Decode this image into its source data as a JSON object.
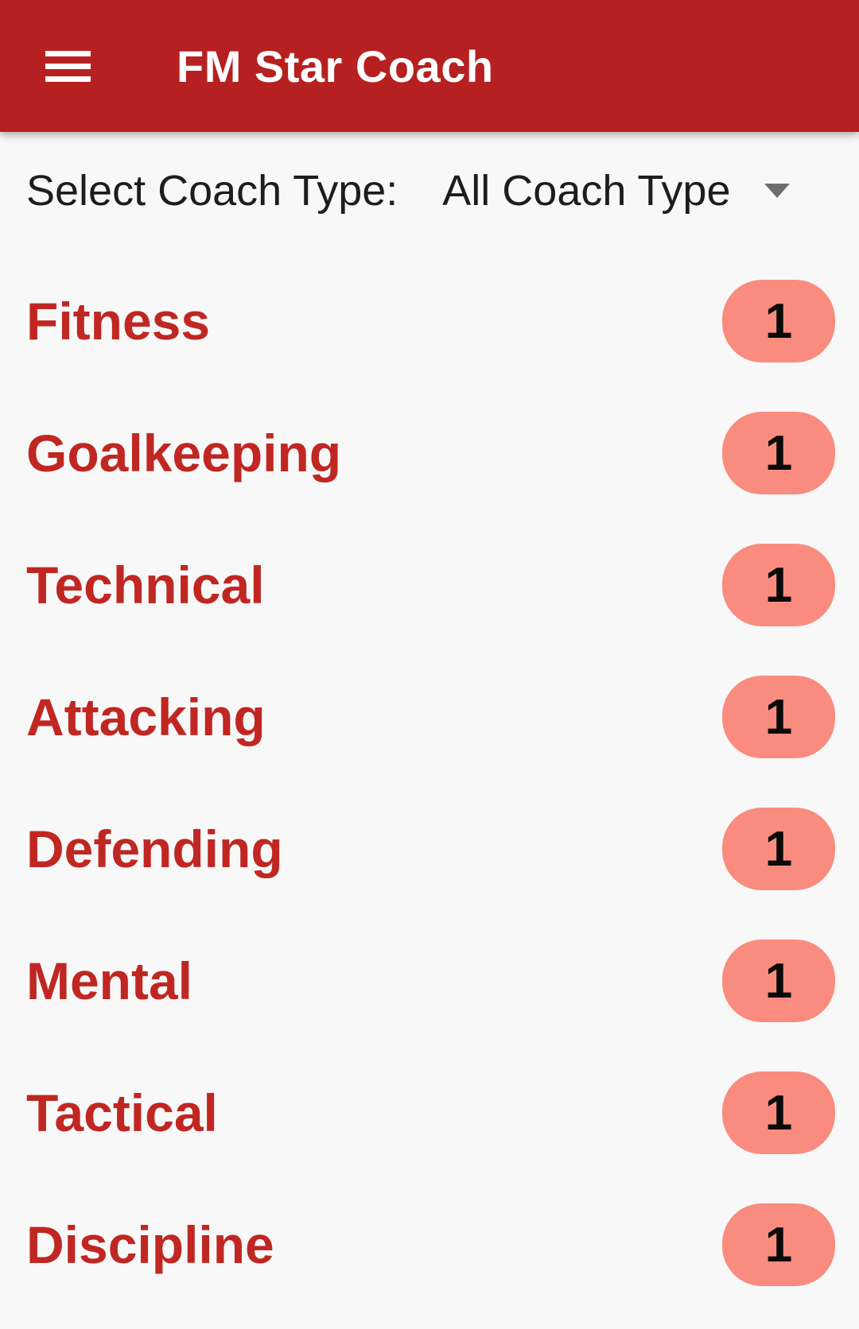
{
  "colors": {
    "appbar_background": "#B62020",
    "appbar_title": "#FFFFFF",
    "category_label": "#C02722",
    "badge_background": "#F98C7E",
    "badge_text": "#0A0A0A",
    "page_background": "#F8F8F8",
    "filter_text": "#1D1D1D",
    "dropdown_arrow": "#6E6E6E"
  },
  "appbar": {
    "title": "FM Star Coach",
    "menu_icon": "hamburger-menu-icon"
  },
  "filter": {
    "label": "Select Coach Type:",
    "selected_value": "All Coach Type",
    "dropdown_icon": "dropdown-arrow-icon"
  },
  "categories": [
    {
      "label": "Fitness",
      "count": "1"
    },
    {
      "label": "Goalkeeping",
      "count": "1"
    },
    {
      "label": "Technical",
      "count": "1"
    },
    {
      "label": "Attacking",
      "count": "1"
    },
    {
      "label": "Defending",
      "count": "1"
    },
    {
      "label": "Mental",
      "count": "1"
    },
    {
      "label": "Tactical",
      "count": "1"
    },
    {
      "label": "Discipline",
      "count": "1"
    }
  ]
}
